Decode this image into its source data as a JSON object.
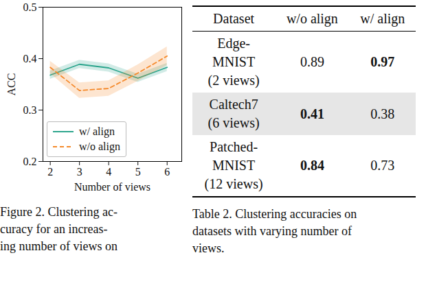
{
  "chart_data": {
    "type": "line",
    "xlabel": "Number of views",
    "ylabel": "ACC",
    "x": [
      2,
      3,
      4,
      5,
      6
    ],
    "series": [
      {
        "name": "w/ align",
        "color": "#2ca58d",
        "line_style": "solid",
        "values": [
          0.368,
          0.389,
          0.382,
          0.362,
          0.383
        ],
        "lower": [
          0.36,
          0.381,
          0.374,
          0.354,
          0.375
        ],
        "upper": [
          0.376,
          0.397,
          0.39,
          0.37,
          0.391
        ]
      },
      {
        "name": "w/o align",
        "color": "#f5892a",
        "line_style": "dashed",
        "values": [
          0.383,
          0.338,
          0.342,
          0.372,
          0.405
        ],
        "lower": [
          0.371,
          0.323,
          0.327,
          0.356,
          0.387
        ],
        "upper": [
          0.395,
          0.353,
          0.357,
          0.388,
          0.423
        ]
      }
    ],
    "xlim": [
      1.75,
      6.5
    ],
    "xticks": [
      2,
      3,
      4,
      5,
      6
    ],
    "ylim": [
      0.2,
      0.5
    ],
    "yticks": [
      0.2,
      0.3,
      0.4,
      0.5
    ],
    "legend": "lower left"
  },
  "figure_caption": [
    "Figure 2. Clustering ac-",
    "curacy for an increas-",
    "ing number of views on"
  ],
  "table": {
    "header": [
      "Dataset",
      "w/o align",
      "w/ align"
    ],
    "rows": [
      {
        "dataset": [
          "Edge-",
          "MNIST",
          "(2 views)"
        ],
        "cells": [
          {
            "value": 0.89
          },
          {
            "value": 0.97,
            "bold": true
          }
        ]
      },
      {
        "dataset": [
          "Caltech7",
          "(6 views)"
        ],
        "shaded": true,
        "cells": [
          {
            "value": 0.41,
            "bold": true
          },
          {
            "value": 0.38
          }
        ]
      },
      {
        "dataset": [
          "Patched-",
          "MNIST",
          "(12 views)"
        ],
        "cells": [
          {
            "value": 0.84,
            "bold": true
          },
          {
            "value": 0.73
          }
        ]
      }
    ]
  },
  "table_caption": [
    "Table 2. Clustering accuracies on",
    "datasets with varying number of",
    "views."
  ]
}
